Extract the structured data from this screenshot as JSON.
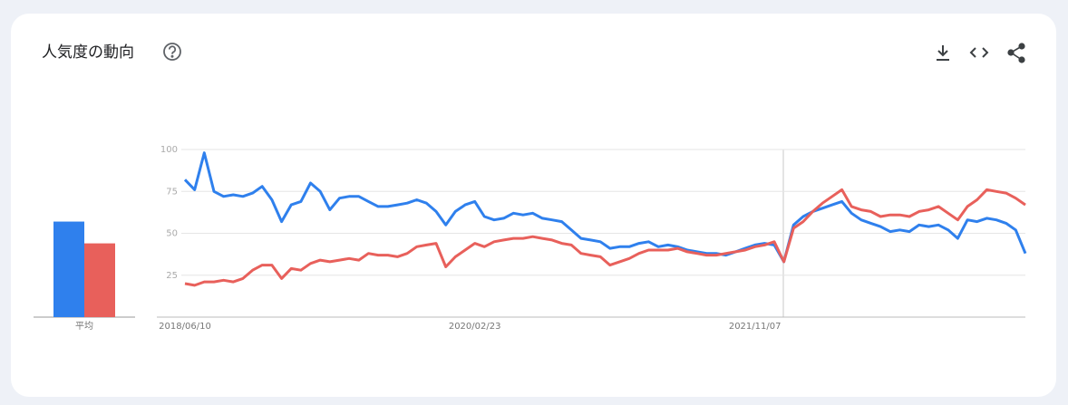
{
  "header": {
    "title": "人気度の動向"
  },
  "chart_data": [
    {
      "type": "bar",
      "categories": [
        "平均"
      ],
      "series": [
        {
          "color": "#2f80ed",
          "values": [
            57
          ]
        },
        {
          "color": "#e8605b",
          "values": [
            44
          ]
        }
      ],
      "ylim": [
        0,
        100
      ]
    },
    {
      "type": "line",
      "categories": [
        "2018/06/10",
        null,
        null,
        null,
        null,
        null,
        null,
        null,
        null,
        null,
        null,
        null,
        null,
        null,
        null,
        null,
        null,
        null,
        null,
        null,
        null,
        null,
        null,
        null,
        null,
        null,
        null,
        null,
        null,
        null,
        "2020/02/23",
        null,
        null,
        null,
        null,
        null,
        null,
        null,
        null,
        null,
        null,
        null,
        null,
        null,
        null,
        null,
        null,
        null,
        null,
        null,
        null,
        null,
        null,
        null,
        null,
        null,
        null,
        null,
        null,
        "2021/11/07",
        null,
        null,
        null,
        null,
        null,
        null,
        null,
        null,
        null,
        null,
        null,
        null,
        null,
        null,
        null,
        null,
        null,
        null,
        null,
        null,
        null,
        null,
        null,
        null,
        null,
        null,
        null,
        null
      ],
      "series": [
        {
          "color": "#2f80ed",
          "values": [
            82,
            76,
            98,
            75,
            72,
            73,
            72,
            74,
            78,
            70,
            57,
            67,
            69,
            80,
            75,
            64,
            71,
            72,
            72,
            69,
            66,
            66,
            67,
            68,
            70,
            68,
            63,
            55,
            63,
            67,
            69,
            60,
            58,
            59,
            62,
            61,
            62,
            59,
            58,
            57,
            52,
            47,
            46,
            45,
            41,
            42,
            42,
            44,
            45,
            42,
            43,
            42,
            40,
            39,
            38,
            38,
            37,
            39,
            41,
            43,
            44,
            43,
            33,
            55,
            60,
            63,
            65,
            67,
            69,
            62,
            58,
            56,
            54,
            51,
            52,
            51,
            55,
            54,
            55,
            52,
            47,
            58,
            57,
            59,
            58,
            56,
            52,
            38
          ]
        },
        {
          "color": "#e8605b",
          "values": [
            20,
            19,
            21,
            21,
            22,
            21,
            23,
            28,
            31,
            31,
            23,
            29,
            28,
            32,
            34,
            33,
            34,
            35,
            34,
            38,
            37,
            37,
            36,
            38,
            42,
            43,
            44,
            30,
            36,
            40,
            44,
            42,
            45,
            46,
            47,
            47,
            48,
            47,
            46,
            44,
            43,
            38,
            37,
            36,
            31,
            33,
            35,
            38,
            40,
            40,
            40,
            41,
            39,
            38,
            37,
            37,
            38,
            39,
            40,
            42,
            43,
            45,
            33,
            53,
            57,
            63,
            68,
            72,
            76,
            66,
            64,
            63,
            60,
            61,
            61,
            60,
            63,
            64,
            66,
            62,
            58,
            66,
            70,
            76,
            75,
            74,
            71,
            67
          ]
        }
      ],
      "ylim": [
        0,
        100
      ],
      "yticks": [
        25,
        50,
        75,
        100
      ],
      "grid": true
    }
  ]
}
